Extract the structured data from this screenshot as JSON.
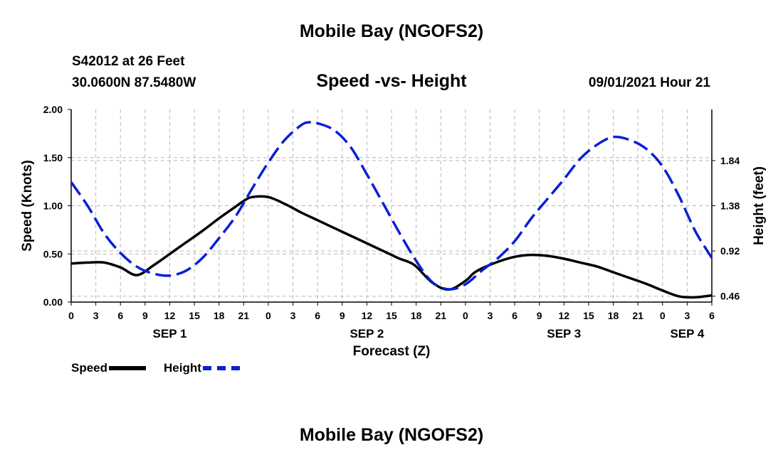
{
  "header": {
    "title": "Mobile Bay (NGOFS2)",
    "station": "S42012 at 26 Feet",
    "coords": "30.0600N  87.5480W",
    "chart_title": "Speed -vs- Height",
    "datetime": "09/01/2021 Hour 21"
  },
  "footer": {
    "title": "Mobile Bay (NGOFS2)"
  },
  "legend": {
    "speed_label": "Speed",
    "height_label": "Height"
  },
  "colors": {
    "speed": "#000000",
    "height": "#0a1fd6",
    "grid": "#b8b8b8"
  },
  "chart_data": {
    "type": "line",
    "title": "Speed -vs- Height",
    "xlabel": "Forecast (Z)",
    "ylabel": "Speed (Knots)",
    "y2label": "Height (feet)",
    "x_range_hours": [
      0,
      78
    ],
    "ylim": [
      0,
      2.0
    ],
    "y2lim": [
      0.4,
      2.36
    ],
    "x_tick_labels": [
      "0",
      "3",
      "6",
      "9",
      "12",
      "15",
      "18",
      "21",
      "0",
      "3",
      "6",
      "9",
      "12",
      "15",
      "18",
      "21",
      "0",
      "3",
      "6",
      "9",
      "12",
      "15",
      "18",
      "21",
      "0",
      "3",
      "6"
    ],
    "y_tick_labels": [
      "0.00",
      "0.50",
      "1.00",
      "1.50",
      "2.00"
    ],
    "y2_ticks": [
      0.46,
      0.92,
      1.38,
      1.84
    ],
    "y2_tick_labels": [
      "0.46",
      "0.92",
      "1.38",
      "1.84"
    ],
    "date_labels": [
      {
        "label": "SEP 1",
        "hour": 12
      },
      {
        "label": "SEP 2",
        "hour": 36
      },
      {
        "label": "SEP 3",
        "hour": 60
      },
      {
        "label": "SEP 4",
        "hour": 75
      }
    ],
    "series": [
      {
        "name": "Speed",
        "axis": "left",
        "style": "solid",
        "x": [
          0,
          2,
          4,
          6,
          8,
          10,
          12,
          14,
          16,
          18,
          20,
          21,
          22,
          24,
          26,
          28,
          30,
          32,
          34,
          36,
          38,
          39,
          40,
          41,
          42,
          44,
          46,
          48,
          49,
          50,
          52,
          54,
          56,
          58,
          60,
          62,
          64,
          66,
          68,
          70,
          72,
          74,
          76,
          78
        ],
        "y": [
          0.4,
          0.41,
          0.41,
          0.36,
          0.28,
          0.38,
          0.5,
          0.62,
          0.74,
          0.87,
          0.99,
          1.05,
          1.09,
          1.09,
          1.02,
          0.93,
          0.85,
          0.77,
          0.69,
          0.61,
          0.53,
          0.49,
          0.45,
          0.42,
          0.37,
          0.2,
          0.13,
          0.22,
          0.3,
          0.35,
          0.42,
          0.47,
          0.49,
          0.48,
          0.45,
          0.41,
          0.37,
          0.31,
          0.25,
          0.19,
          0.12,
          0.06,
          0.05,
          0.07
        ]
      },
      {
        "name": "Height",
        "axis": "right",
        "style": "dashed",
        "x": [
          0,
          2,
          4,
          6,
          8,
          10,
          12,
          14,
          16,
          18,
          20,
          22,
          24,
          26,
          28,
          29,
          30,
          32,
          34,
          36,
          38,
          40,
          42,
          44,
          46,
          48,
          50,
          52,
          54,
          56,
          58,
          60,
          62,
          64,
          66,
          68,
          70,
          72,
          74,
          76,
          78
        ],
        "y": [
          1.62,
          1.38,
          1.1,
          0.9,
          0.76,
          0.69,
          0.67,
          0.72,
          0.85,
          1.05,
          1.27,
          1.55,
          1.82,
          2.05,
          2.2,
          2.23,
          2.22,
          2.15,
          1.98,
          1.7,
          1.4,
          1.1,
          0.82,
          0.6,
          0.53,
          0.58,
          0.72,
          0.85,
          1.02,
          1.25,
          1.45,
          1.65,
          1.86,
          2.0,
          2.08,
          2.05,
          1.96,
          1.78,
          1.48,
          1.12,
          0.85
        ]
      }
    ]
  }
}
